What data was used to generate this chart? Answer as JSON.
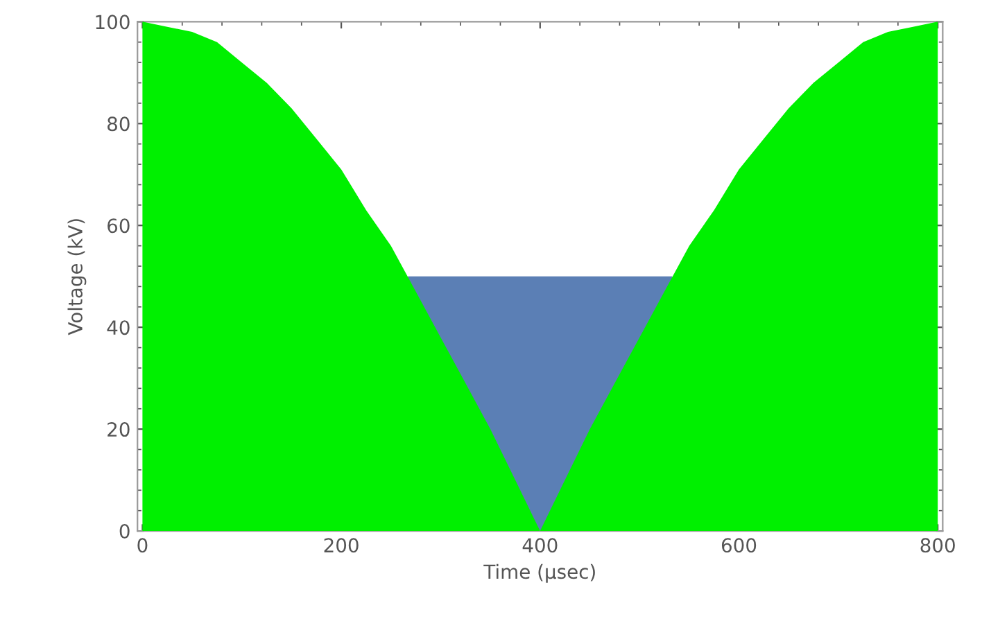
{
  "chart_data": {
    "type": "area",
    "xlabel": "Time (μsec)",
    "ylabel": "Voltage (kV)",
    "series": [
      {
        "color": "#00f000",
        "x": [
          0,
          25,
          50,
          75,
          100,
          125,
          150,
          175,
          200,
          225,
          250,
          275,
          300,
          325,
          350,
          375,
          400,
          425,
          450,
          475,
          500,
          525,
          550,
          575,
          600,
          625,
          650,
          675,
          700,
          725,
          750,
          775,
          800
        ],
        "values": [
          100,
          99,
          98,
          96,
          92,
          88,
          83,
          77,
          71,
          63,
          56,
          47,
          38,
          29,
          20,
          10,
          0,
          10,
          20,
          29,
          38,
          47,
          56,
          63,
          71,
          77,
          83,
          88,
          92,
          96,
          98,
          99,
          100
        ]
      },
      {
        "color": "#5b7fb5",
        "x": [
          267,
          533
        ],
        "values": [
          50,
          50
        ]
      }
    ],
    "xlim": [
      -5,
      805
    ],
    "ylim": [
      0,
      100
    ],
    "xticks": [
      0,
      200,
      400,
      600,
      800
    ],
    "yticks": [
      0,
      20,
      40,
      60,
      80,
      100
    ],
    "grid": false,
    "legend": false
  }
}
